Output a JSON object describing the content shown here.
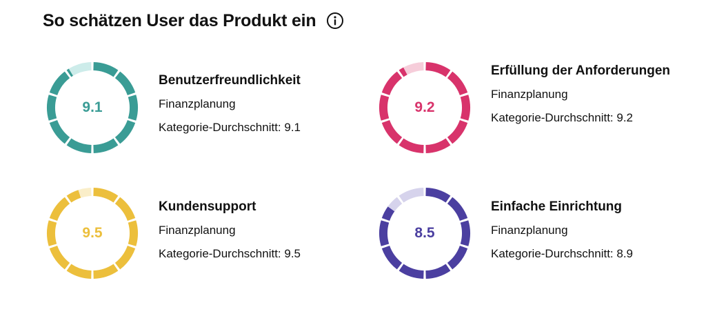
{
  "header": {
    "title": "So schätzen User das Produkt ein",
    "info_icon": "info-circle-icon"
  },
  "cards": [
    {
      "name": "Benutzerfreundlichkeit",
      "score": "9.1",
      "score_value": 9.1,
      "category": "Finanzplanung",
      "avg_label": "Kategorie-Durchschnitt: 9.1",
      "color": "#3a9c95",
      "light_color": "#cdecea"
    },
    {
      "name": "Erfüllung der Anforderungen",
      "score": "9.2",
      "score_value": 9.2,
      "category": "Finanzplanung",
      "avg_label": "Kategorie-Durchschnitt: 9.2",
      "color": "#d8336b",
      "light_color": "#f6cdda"
    },
    {
      "name": "Kundensupport",
      "score": "9.5",
      "score_value": 9.5,
      "category": "Finanzplanung",
      "avg_label": "Kategorie-Durchschnitt: 9.5",
      "color": "#ecbf3c",
      "light_color": "#faeec9"
    },
    {
      "name": "Einfache Einrichtung",
      "score": "8.5",
      "score_value": 8.5,
      "category": "Finanzplanung",
      "avg_label": "Kategorie-Durchschnitt: 8.9",
      "color": "#4b3fa0",
      "light_color": "#d6d3ec"
    }
  ]
}
